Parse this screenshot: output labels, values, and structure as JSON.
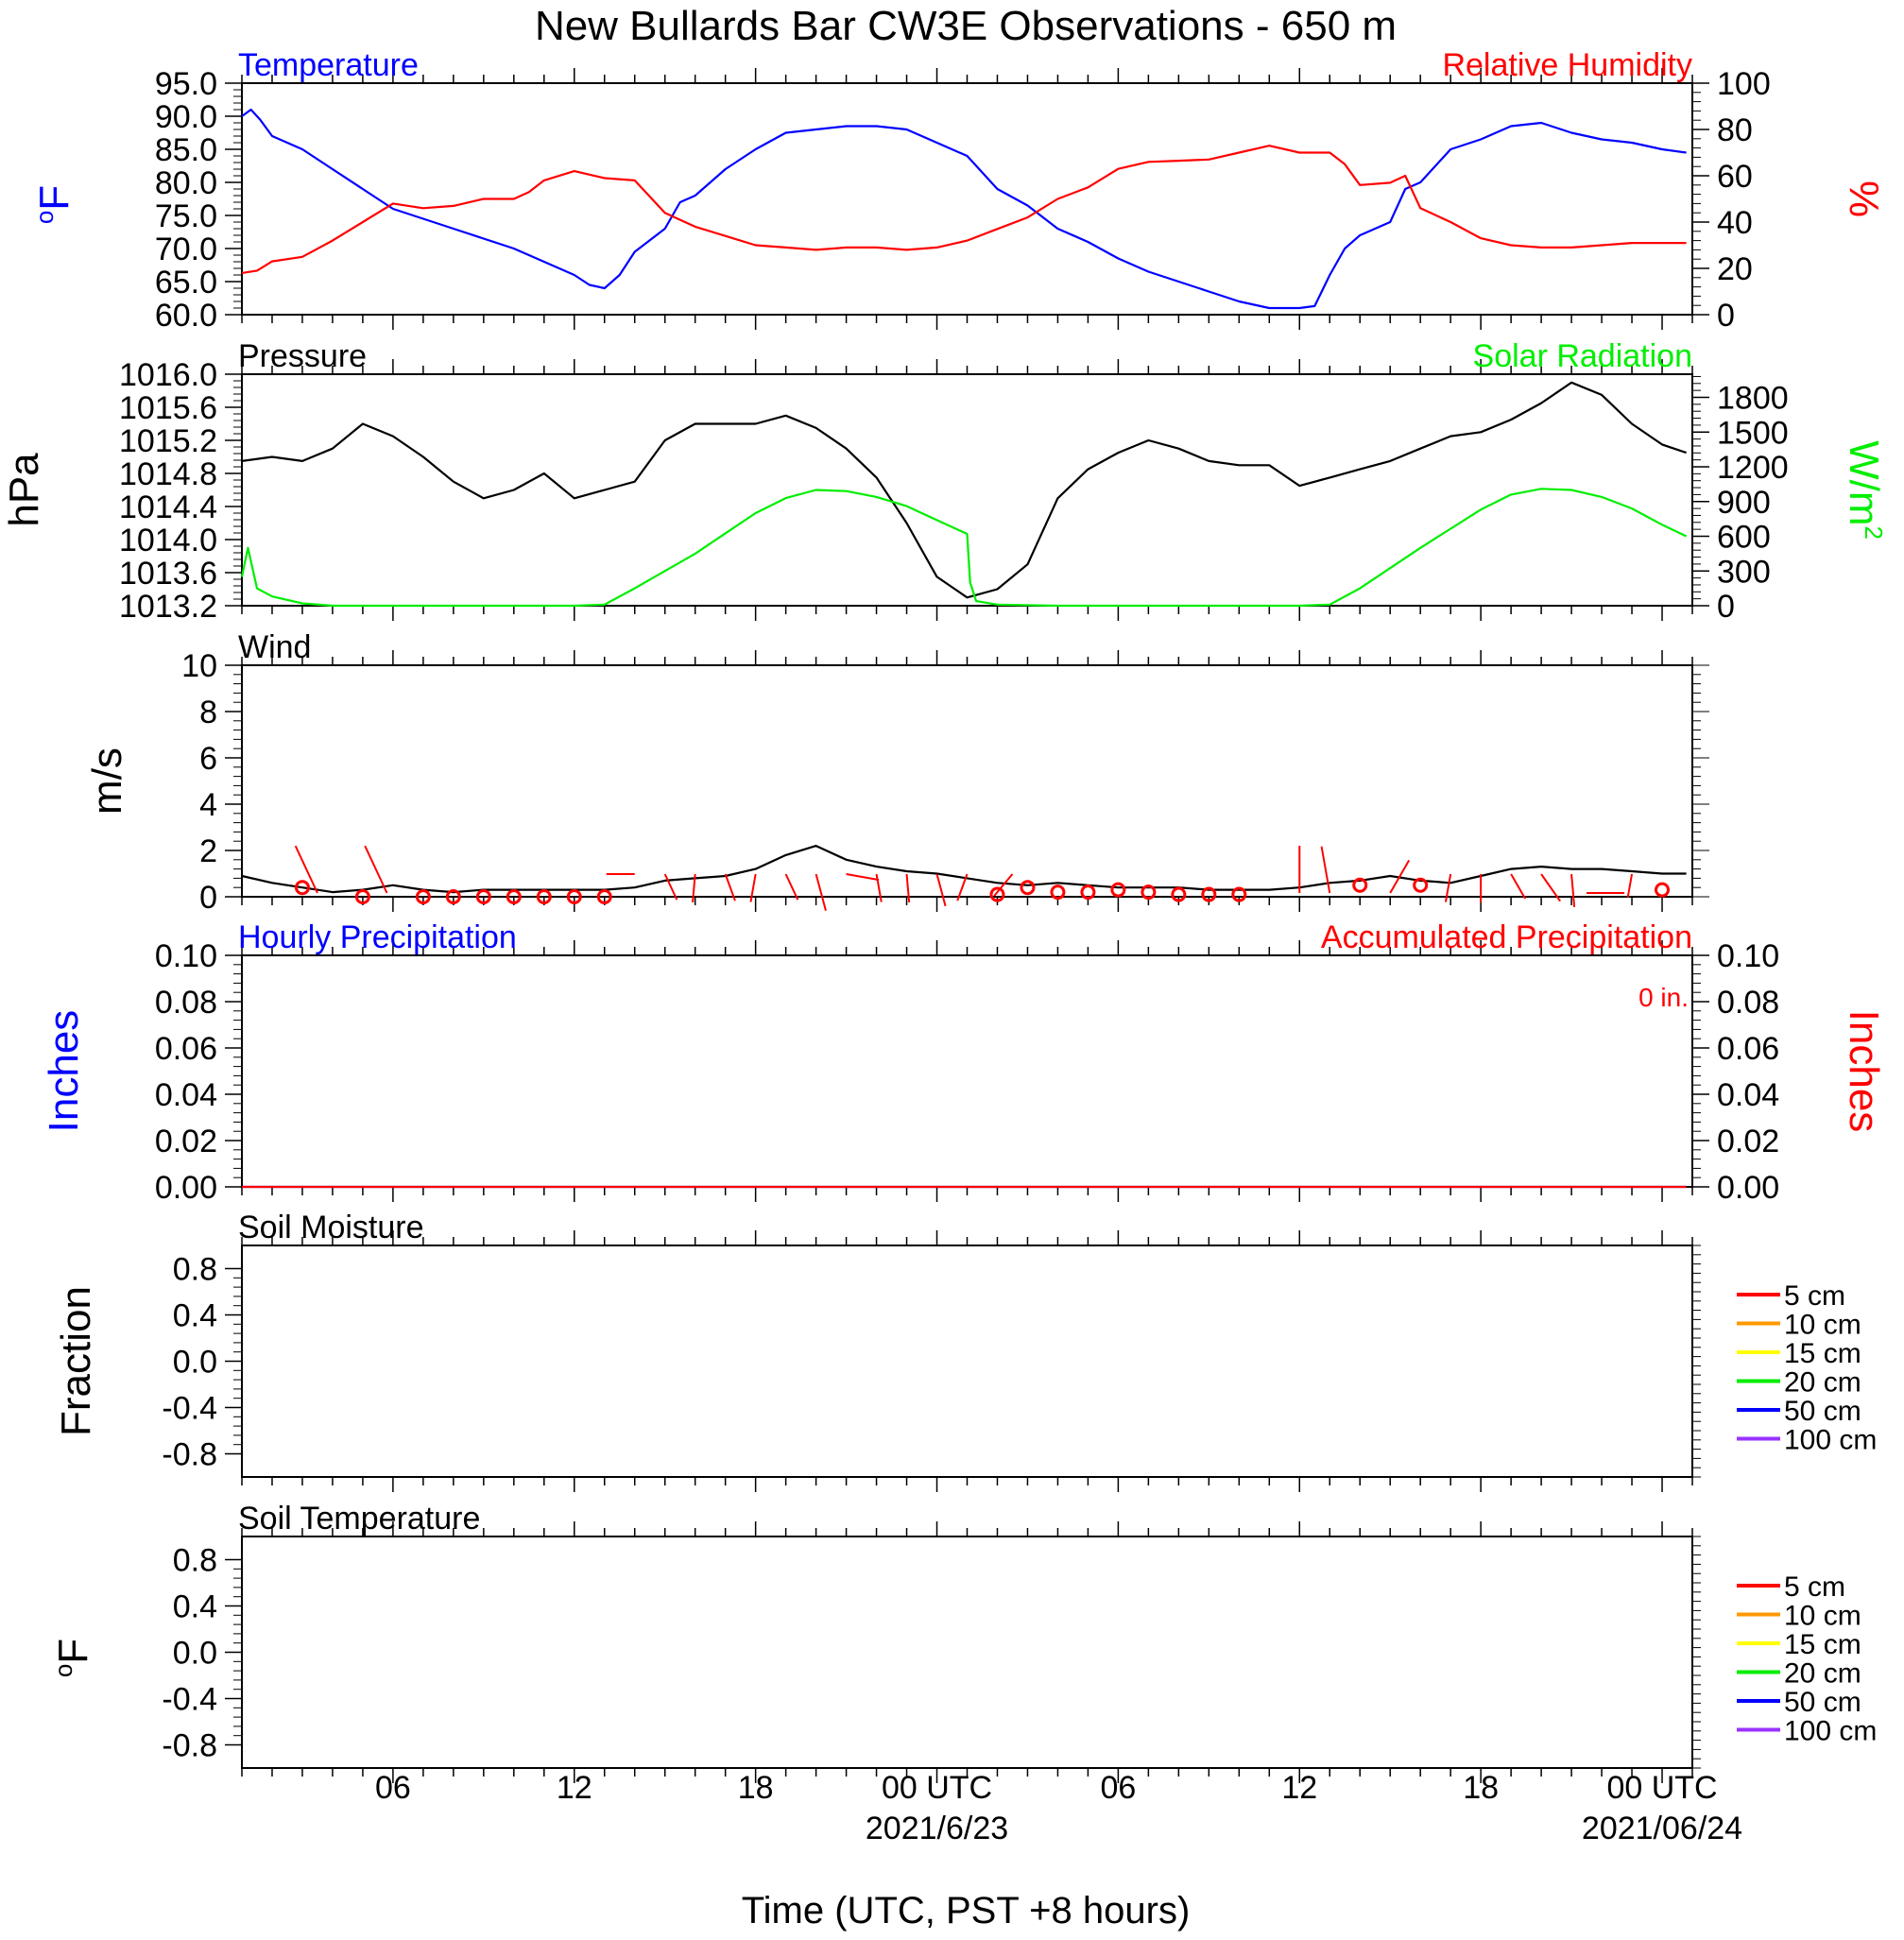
{
  "title": "New Bullards Bar CW3E Observations - 650 m",
  "xlabel": "Time (UTC, PST +8 hours)",
  "x_ticks": [
    {
      "hour": 6,
      "label": "06"
    },
    {
      "hour": 12,
      "label": "12"
    },
    {
      "hour": 18,
      "label": "18"
    },
    {
      "hour": 24,
      "label": "00 UTC",
      "sublabel": "2021/6/23"
    },
    {
      "hour": 30,
      "label": "06"
    },
    {
      "hour": 36,
      "label": "12"
    },
    {
      "hour": 42,
      "label": "18"
    },
    {
      "hour": 48,
      "label": "00 UTC",
      "sublabel": "2021/06/24"
    }
  ],
  "colors": {
    "blue": "#0000ff",
    "red": "#ff0000",
    "green": "#00ee00",
    "black": "#000000"
  },
  "chart_data": [
    {
      "panel": "temperature",
      "type": "line",
      "x_unit": "hours since 2021-06-22 00 UTC",
      "xlim": [
        1,
        49
      ],
      "left_title": "Temperature",
      "right_title": "Relative Humidity",
      "ylabel": "oF",
      "y2label": "%",
      "ylim": [
        60,
        95
      ],
      "y2lim": [
        0,
        100
      ],
      "yticks": [
        "60.0",
        "65.0",
        "70.0",
        "75.0",
        "80.0",
        "85.0",
        "90.0",
        "95.0"
      ],
      "y2ticks": [
        "0",
        "20",
        "40",
        "60",
        "80",
        "100"
      ],
      "series": [
        {
          "name": "Temperature",
          "axis": "left",
          "color": "#0000ff",
          "x": [
            1,
            1.3,
            1.6,
            2,
            3,
            4,
            5,
            6,
            8,
            10,
            11,
            12,
            12.5,
            13,
            13.5,
            14,
            15,
            15.5,
            16,
            17,
            18,
            19,
            20,
            21,
            22,
            23,
            24,
            25,
            26,
            27,
            28,
            29,
            30,
            31,
            32,
            33,
            34,
            35,
            36,
            36.5,
            37,
            37.5,
            38,
            39,
            39.5,
            40,
            41,
            42,
            43,
            44,
            45,
            46,
            47,
            48,
            48.8
          ],
          "y": [
            90,
            91,
            89.5,
            87,
            85,
            82,
            79,
            76,
            73,
            70,
            68,
            66,
            64.5,
            64,
            66,
            69.5,
            73,
            77,
            78,
            82,
            85,
            87.5,
            88,
            88.5,
            88.5,
            88,
            86,
            84,
            79,
            76.5,
            73,
            71,
            68.5,
            66.5,
            65,
            63.5,
            62,
            61,
            61,
            61.3,
            66,
            70,
            72,
            74,
            79,
            80,
            85,
            86.5,
            88.5,
            89,
            87.5,
            86.5,
            86,
            85,
            84.5
          ]
        },
        {
          "name": "Relative Humidity",
          "axis": "right",
          "color": "#ff0000",
          "x": [
            1,
            1.5,
            2,
            3,
            4,
            5,
            6,
            7,
            8,
            9,
            10,
            10.5,
            11,
            12,
            13,
            14,
            15,
            15.5,
            16,
            17,
            18,
            19,
            20,
            21,
            22,
            23,
            24,
            25,
            26,
            27,
            28,
            29,
            30,
            31,
            32,
            33,
            34,
            35,
            36,
            36.5,
            37,
            37.5,
            38,
            39,
            39.5,
            40,
            41,
            42,
            43,
            44,
            45,
            46,
            47,
            48,
            48.8
          ],
          "y": [
            18,
            19,
            23,
            25,
            32,
            40,
            48,
            46,
            47,
            50,
            50,
            53,
            58,
            62,
            59,
            58,
            44,
            41,
            38,
            34,
            30,
            29,
            28,
            29,
            29,
            28,
            29,
            32,
            37,
            42,
            50,
            55,
            63,
            66,
            66.5,
            67,
            70,
            73,
            70,
            70,
            70,
            65,
            56,
            57,
            60,
            46,
            40,
            33,
            30,
            29,
            29,
            30,
            31,
            31,
            31
          ]
        }
      ]
    },
    {
      "panel": "pressure",
      "type": "line",
      "x_unit": "hours since 2021-06-22 00 UTC",
      "xlim": [
        1,
        49
      ],
      "left_title": "Pressure",
      "right_title": "Solar Radiation",
      "ylabel": "hPa",
      "y2label": "W/m2",
      "ylim": [
        1013.2,
        1016.0
      ],
      "y2lim": [
        0,
        2000
      ],
      "yticks": [
        "1013.2",
        "1013.6",
        "1014.0",
        "1014.4",
        "1014.8",
        "1015.2",
        "1015.6",
        "1016.0"
      ],
      "y2ticks": [
        "0",
        "300",
        "600",
        "900",
        "1200",
        "1500",
        "1800"
      ],
      "series": [
        {
          "name": "Pressure",
          "axis": "left",
          "color": "#000000",
          "x": [
            1,
            2,
            3,
            4,
            5,
            6,
            7,
            8,
            9,
            10,
            11,
            12,
            13,
            14,
            15,
            16,
            17,
            18,
            19,
            20,
            21,
            22,
            23,
            24,
            25,
            26,
            27,
            28,
            29,
            30,
            31,
            32,
            33,
            34,
            35,
            36,
            37,
            38,
            39,
            40,
            41,
            42,
            43,
            44,
            45,
            46,
            47,
            48,
            48.8
          ],
          "y": [
            1014.95,
            1015.0,
            1014.95,
            1015.1,
            1015.4,
            1015.25,
            1015.0,
            1014.7,
            1014.5,
            1014.6,
            1014.8,
            1014.5,
            1014.6,
            1014.7,
            1015.2,
            1015.4,
            1015.4,
            1015.4,
            1015.5,
            1015.35,
            1015.1,
            1014.75,
            1014.2,
            1013.55,
            1013.3,
            1013.4,
            1013.7,
            1014.5,
            1014.85,
            1015.05,
            1015.2,
            1015.1,
            1014.95,
            1014.9,
            1014.9,
            1014.65,
            1014.75,
            1014.85,
            1014.95,
            1015.1,
            1015.25,
            1015.3,
            1015.45,
            1015.65,
            1015.9,
            1015.75,
            1015.4,
            1015.15,
            1015.05
          ]
        },
        {
          "name": "Solar Radiation",
          "axis": "right",
          "color": "#00ee00",
          "x": [
            1,
            1.2,
            1.5,
            2,
            3,
            4,
            5,
            6,
            8,
            10,
            12,
            13,
            14,
            16,
            18,
            19,
            20,
            21,
            22,
            23,
            24,
            25,
            25.1,
            25.3,
            26,
            28,
            30,
            32,
            34,
            36,
            37,
            38,
            40,
            42,
            43,
            44,
            45,
            46,
            47,
            48,
            48.8
          ],
          "y": [
            250,
            500,
            150,
            80,
            20,
            0,
            0,
            0,
            0,
            0,
            0,
            10,
            150,
            450,
            800,
            930,
            1000,
            990,
            940,
            860,
            740,
            620,
            200,
            40,
            10,
            0,
            0,
            0,
            0,
            0,
            10,
            150,
            500,
            830,
            960,
            1010,
            1000,
            940,
            840,
            700,
            600
          ]
        }
      ]
    },
    {
      "panel": "wind",
      "type": "line",
      "x_unit": "hours since 2021-06-22 00 UTC",
      "xlim": [
        1,
        49
      ],
      "left_title": "Wind",
      "ylabel": "m/s",
      "ylim": [
        0,
        10
      ],
      "yticks": [
        "0",
        "2",
        "4",
        "6",
        "8",
        "10"
      ],
      "series": [
        {
          "name": "Wind",
          "color": "#000000",
          "x": [
            1,
            2,
            3,
            4,
            5,
            6,
            7,
            8,
            9,
            10,
            11,
            12,
            13,
            14,
            15,
            16,
            17,
            18,
            19,
            20,
            21,
            22,
            23,
            24,
            25,
            26,
            27,
            28,
            29,
            30,
            31,
            32,
            33,
            34,
            35,
            36,
            37,
            38,
            39,
            40,
            41,
            42,
            43,
            44,
            45,
            46,
            47,
            48,
            48.8
          ],
          "y": [
            0.9,
            0.6,
            0.4,
            0.2,
            0.3,
            0.5,
            0.3,
            0.2,
            0.3,
            0.3,
            0.3,
            0.3,
            0.3,
            0.4,
            0.7,
            0.8,
            0.9,
            1.2,
            1.8,
            2.2,
            1.6,
            1.3,
            1.1,
            1.0,
            0.8,
            0.6,
            0.5,
            0.6,
            0.5,
            0.4,
            0.4,
            0.4,
            0.3,
            0.3,
            0.3,
            0.4,
            0.6,
            0.7,
            0.9,
            0.7,
            0.6,
            0.9,
            1.2,
            1.3,
            1.2,
            1.2,
            1.1,
            1.0,
            1.0
          ]
        }
      ],
      "barbs": [
        {
          "x": 3,
          "v": 0.4,
          "calm": true
        },
        {
          "x": 3.5,
          "dir": -25,
          "len": 55
        },
        {
          "x": 5,
          "v": 0.0,
          "calm": true
        },
        {
          "x": 5.8,
          "dir": -25,
          "len": 55
        },
        {
          "x": 7,
          "v": 0.0,
          "calm": true
        },
        {
          "x": 8,
          "v": 0.0,
          "calm": true
        },
        {
          "x": 9,
          "v": 0.0,
          "calm": true
        },
        {
          "x": 10,
          "v": 0.0,
          "calm": true
        },
        {
          "x": 11,
          "v": 0.0,
          "calm": true
        },
        {
          "x": 12,
          "v": 0.0,
          "calm": true
        },
        {
          "x": 13,
          "v": 0.0,
          "calm": true
        },
        {
          "x": 14,
          "dir": 270,
          "len": 30
        },
        {
          "x": 15,
          "dir": 155,
          "len": 30
        },
        {
          "x": 16,
          "dir": 185,
          "len": 30
        },
        {
          "x": 17,
          "dir": 160,
          "len": 30
        },
        {
          "x": 18,
          "dir": 190,
          "len": 30
        },
        {
          "x": 19,
          "dir": 155,
          "len": 30
        },
        {
          "x": 20,
          "dir": 165,
          "len": 40
        },
        {
          "x": 21,
          "dir": 100,
          "len": 35
        },
        {
          "x": 22,
          "dir": 170,
          "len": 30
        },
        {
          "x": 23,
          "dir": 175,
          "len": 30
        },
        {
          "x": 24,
          "dir": 165,
          "len": 35
        },
        {
          "x": 25,
          "dir": 200,
          "len": 30
        },
        {
          "x": 26,
          "v": 0.1,
          "calm": true
        },
        {
          "x": 26.5,
          "dir": 220,
          "len": 30
        },
        {
          "x": 27,
          "v": 0.4,
          "calm": true
        },
        {
          "x": 28,
          "v": 0.2,
          "calm": true
        },
        {
          "x": 29,
          "v": 0.2,
          "calm": true
        },
        {
          "x": 30,
          "v": 0.3,
          "calm": true
        },
        {
          "x": 31,
          "v": 0.2,
          "calm": true
        },
        {
          "x": 32,
          "v": 0.1,
          "calm": true
        },
        {
          "x": 33,
          "v": 0.1,
          "calm": true
        },
        {
          "x": 34,
          "v": 0.1,
          "calm": true
        },
        {
          "x": 36,
          "dir": 0,
          "len": 50
        },
        {
          "x": 37,
          "dir": -10,
          "len": 50
        },
        {
          "x": 38,
          "v": 0.5,
          "calm": true
        },
        {
          "x": 39,
          "dir": 30,
          "len": 40
        },
        {
          "x": 40,
          "v": 0.5,
          "calm": true
        },
        {
          "x": 41,
          "dir": 190,
          "len": 30
        },
        {
          "x": 42,
          "dir": 180,
          "len": 30
        },
        {
          "x": 43,
          "dir": 150,
          "len": 30
        },
        {
          "x": 44,
          "dir": 145,
          "len": 35
        },
        {
          "x": 45,
          "dir": 175,
          "len": 35
        },
        {
          "x": 45.5,
          "dir": 90,
          "len": 40
        },
        {
          "x": 47,
          "dir": 190,
          "len": 25
        },
        {
          "x": 48,
          "v": 0.3,
          "calm": true
        }
      ]
    },
    {
      "panel": "precipitation",
      "type": "line",
      "x_unit": "hours since 2021-06-22 00 UTC",
      "xlim": [
        1,
        49
      ],
      "left_title": "Hourly Precipitation",
      "right_title": "Accumulated Precipitation",
      "annotation": "0 in.",
      "ylabel": "Inches",
      "y2label": "Inches",
      "ylim": [
        0,
        0.1
      ],
      "y2lim": [
        0,
        0.1
      ],
      "yticks": [
        "0.00",
        "0.02",
        "0.04",
        "0.06",
        "0.08",
        "0.10"
      ],
      "y2ticks": [
        "0.00",
        "0.02",
        "0.04",
        "0.06",
        "0.08",
        "0.10"
      ],
      "series": [
        {
          "name": "Hourly Precipitation",
          "axis": "left",
          "color": "#0000ff",
          "x": [
            1,
            48.8
          ],
          "y": [
            0,
            0
          ]
        },
        {
          "name": "Accumulated Precipitation",
          "axis": "right",
          "color": "#ff0000",
          "x": [
            1,
            48.8
          ],
          "y": [
            0,
            0
          ]
        }
      ]
    },
    {
      "panel": "soil_moisture",
      "type": "line",
      "x_unit": "hours since 2021-06-22 00 UTC",
      "xlim": [
        1,
        49
      ],
      "left_title": "Soil Moisture",
      "ylabel": "Fraction",
      "ylim": [
        -1,
        1
      ],
      "yticks": [
        "-0.8",
        "-0.4",
        "0.0",
        "0.4",
        "0.8"
      ],
      "legend": [
        {
          "label": "5 cm",
          "color": "#ff0000"
        },
        {
          "label": "10 cm",
          "color": "#ff9900"
        },
        {
          "label": "15 cm",
          "color": "#ffff00"
        },
        {
          "label": "20 cm",
          "color": "#00ee00"
        },
        {
          "label": "50 cm",
          "color": "#0000ff"
        },
        {
          "label": "100 cm",
          "color": "#9933ff"
        }
      ],
      "series": []
    },
    {
      "panel": "soil_temperature",
      "type": "line",
      "x_unit": "hours since 2021-06-22 00 UTC",
      "xlim": [
        1,
        49
      ],
      "left_title": "Soil Temperature",
      "ylabel": "oF",
      "ylim": [
        -1,
        1
      ],
      "yticks": [
        "-0.8",
        "-0.4",
        "0.0",
        "0.4",
        "0.8"
      ],
      "legend": [
        {
          "label": "5 cm",
          "color": "#ff0000"
        },
        {
          "label": "10 cm",
          "color": "#ff9900"
        },
        {
          "label": "15 cm",
          "color": "#ffff00"
        },
        {
          "label": "20 cm",
          "color": "#00ee00"
        },
        {
          "label": "50 cm",
          "color": "#0000ff"
        },
        {
          "label": "100 cm",
          "color": "#9933ff"
        }
      ],
      "series": []
    }
  ]
}
